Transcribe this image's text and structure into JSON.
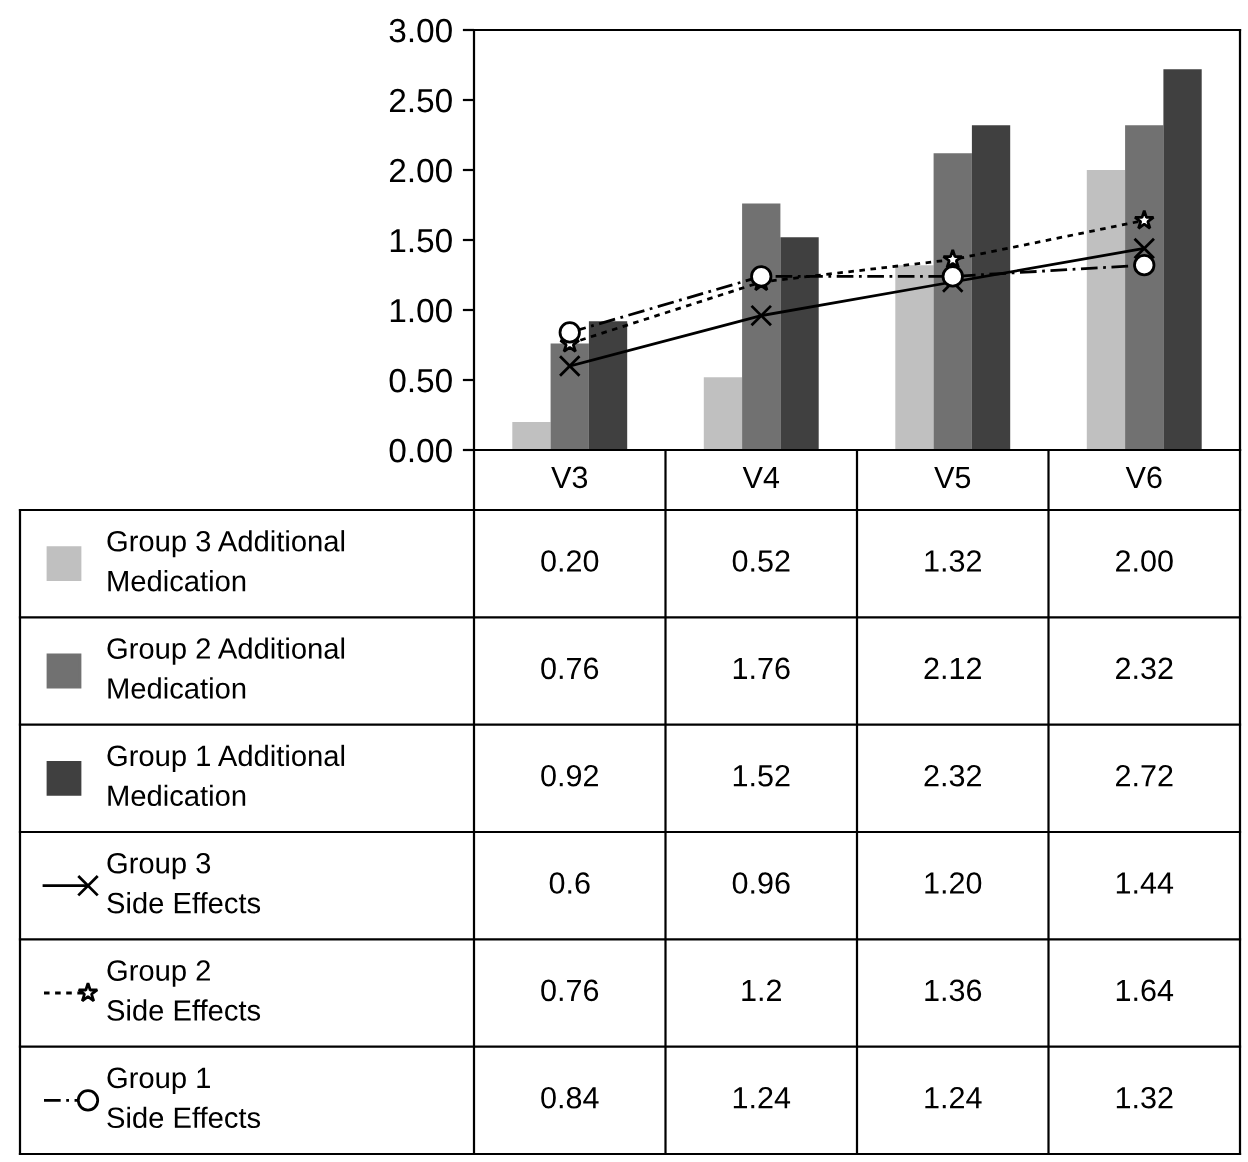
{
  "chart_data": {
    "type": "bar",
    "categories": [
      "V3",
      "V4",
      "V5",
      "V6"
    ],
    "ylim": [
      0,
      3
    ],
    "yticks": [
      {
        "value": 0,
        "label": "0.00"
      },
      {
        "value": 0.5,
        "label": "0.50"
      },
      {
        "value": 1,
        "label": "1.00"
      },
      {
        "value": 1.5,
        "label": "1.50"
      },
      {
        "value": 2,
        "label": "2.00"
      },
      {
        "value": 2.5,
        "label": "2.50"
      },
      {
        "value": 3,
        "label": "3.00"
      }
    ],
    "grid": false,
    "legend": "bottom left",
    "series": [
      {
        "name": "Group 3 Additional\nMedication",
        "color": "#c0c0c0",
        "values": [
          0.2,
          0.52,
          1.32,
          2.0
        ],
        "value_labels": [
          "0.20",
          "0.52",
          "1.32",
          "2.00"
        ]
      },
      {
        "name": "Group 2 Additional\nMedication",
        "color": "#717171",
        "values": [
          0.76,
          1.76,
          2.12,
          2.32
        ],
        "value_labels": [
          "0.76",
          "1.76",
          "2.12",
          "2.32"
        ]
      },
      {
        "name": "Group 1 Additional\nMedication",
        "color": "#404040",
        "values": [
          0.92,
          1.52,
          2.32,
          2.72
        ],
        "value_labels": [
          "0.92",
          "1.52",
          "2.32",
          "2.72"
        ]
      },
      {
        "name": "Group 3\nSide Effects",
        "type": "line",
        "color": "#000000",
        "marker": "cross",
        "line_style": "solid",
        "values": [
          0.6,
          0.96,
          1.2,
          1.44
        ],
        "value_labels": [
          "0.6",
          "0.96",
          "1.20",
          "1.44"
        ]
      },
      {
        "name": "Group 2\nSide Effects",
        "type": "line",
        "color": "#000000",
        "marker": "star",
        "line_style": "dotted",
        "values": [
          0.76,
          1.2,
          1.36,
          1.64
        ],
        "value_labels": [
          "0.76",
          "1.2",
          "1.36",
          "1.64"
        ]
      },
      {
        "name": "Group 1\nSide Effects",
        "type": "line",
        "color": "#000000",
        "marker": "circle",
        "line_style": "dashed",
        "values": [
          0.84,
          1.24,
          1.24,
          1.32
        ],
        "value_labels": [
          "0.84",
          "1.24",
          "1.24",
          "1.32"
        ]
      }
    ]
  }
}
